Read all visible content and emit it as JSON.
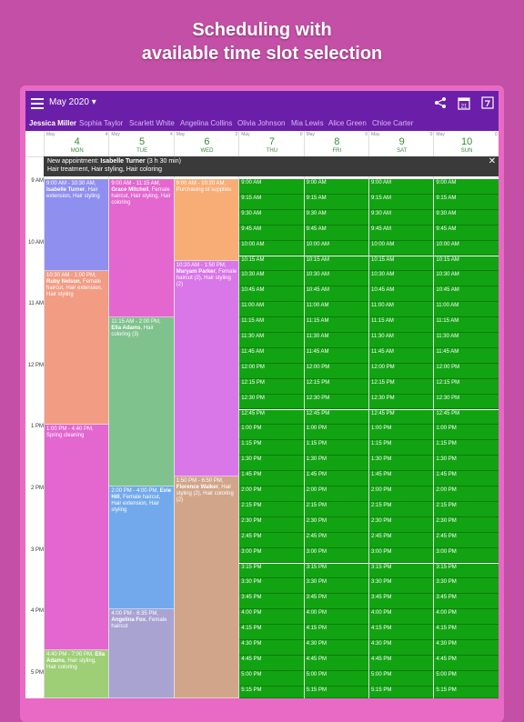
{
  "headline": {
    "line1": "Scheduling with",
    "line2": "available time slot selection"
  },
  "topbar": {
    "month": "May 2020",
    "calendar_icon_day": "21"
  },
  "staff": [
    "Jessica Miller",
    "Sophia Taylor",
    "Scarlett White",
    "Angelina Collins",
    "Olivia Johnson",
    "Mia Lewis",
    "Alice Green",
    "Chloe Carter"
  ],
  "days": [
    {
      "month": "May",
      "count": "4",
      "num": "4",
      "wd": "MON"
    },
    {
      "month": "May",
      "count": "4",
      "num": "5",
      "wd": "TUE"
    },
    {
      "month": "May",
      "count": "3",
      "num": "6",
      "wd": "WED"
    },
    {
      "month": "May",
      "count": "0",
      "num": "7",
      "wd": "THU"
    },
    {
      "month": "May",
      "count": "0",
      "num": "8",
      "wd": "FRI"
    },
    {
      "month": "May",
      "count": "0",
      "num": "9",
      "wd": "SAT"
    },
    {
      "month": "May",
      "count": "0",
      "num": "10",
      "wd": "SUN"
    }
  ],
  "banner": {
    "prefix": "New appointment: ",
    "name": "Isabelle Turner",
    "duration": " (3 h 30 min)",
    "services": "Hair treatment, Hair styling, Hair coloring",
    "close": "✕"
  },
  "hours": [
    "9 AM",
    "10 AM",
    "11 AM",
    "12 PM",
    "1 PM",
    "2 PM",
    "3 PM",
    "4 PM",
    "5 PM"
  ],
  "appointments": [
    {
      "day": 0,
      "start": 0,
      "end": 1.5,
      "color": "#8f8ff0",
      "time": "9:00 AM - 10:30 AM,",
      "name": "Isabelle Turner",
      "svc": ", Hair extension, Hair styling"
    },
    {
      "day": 0,
      "start": 1.5,
      "end": 4,
      "color": "#f29c84",
      "time": "10:30 AM - 1:00 PM,",
      "name": "Ruby Nelson",
      "svc": ", Female haircut, Hair extension, Hair styling"
    },
    {
      "day": 0,
      "start": 4,
      "end": 7.667,
      "color": "#e367cf",
      "time": "1:00 PM - 4:40 PM,",
      "name": "",
      "svc": "Spring cleaning"
    },
    {
      "day": 0,
      "start": 7.667,
      "end": 10,
      "color": "#9ecf76",
      "time": "4:40 PM - 7:00 PM,",
      "name": "Ella Adams",
      "svc": ", Hair styling, Hair coloring"
    },
    {
      "day": 1,
      "start": 0,
      "end": 2.25,
      "color": "#e367cf",
      "time": "9:00 AM - 11:15 AM,",
      "name": "Grace Mitchell",
      "svc": ", Female haircut, Hair styling, Hair coloring"
    },
    {
      "day": 1,
      "start": 2.25,
      "end": 5,
      "color": "#7fc28d",
      "time": "11:15 AM - 2:00 PM,",
      "name": "Ella Adams",
      "svc": ", Hair coloring (3)"
    },
    {
      "day": 1,
      "start": 5,
      "end": 7,
      "color": "#72a9ec",
      "time": "2:00 PM - 4:00 PM,",
      "name": "Evie Hill",
      "svc": ", Female haircut, Hair extension, Hair styling"
    },
    {
      "day": 1,
      "start": 7,
      "end": 9.583,
      "color": "#a8a3d1",
      "time": "4:00 PM - 6:35 PM,",
      "name": "Angelina Fox",
      "svc": ", Female haircut"
    },
    {
      "day": 2,
      "start": 0,
      "end": 1.333,
      "color": "#f8ad77",
      "time": "9:00 AM - 10:20 AM,",
      "name": "",
      "svc": "Purchasing of supplies"
    },
    {
      "day": 2,
      "start": 1.333,
      "end": 4.833,
      "color": "#d976e8",
      "time": "10:20 AM - 1:50 PM,",
      "name": "Maryam Parker",
      "svc": ", Female haircut (2), Hair styling (2)"
    },
    {
      "day": 2,
      "start": 4.833,
      "end": 9.833,
      "color": "#d1a58a",
      "time": "1:50 PM - 6:50 PM,",
      "name": "Florence Walker",
      "svc": ", Hair styling (2), Hair coloring (2)"
    }
  ],
  "slots": [
    "9:00 AM",
    "9:15 AM",
    "9:30 AM",
    "9:45 AM",
    "10:00 AM",
    "10:15 AM",
    "10:30 AM",
    "10:45 AM",
    "11:00 AM",
    "11:15 AM",
    "11:30 AM",
    "11:45 AM",
    "12:00 PM",
    "12:15 PM",
    "12:30 PM",
    "12:45 PM",
    "1:00 PM",
    "1:15 PM",
    "1:30 PM",
    "1:45 PM",
    "2:00 PM",
    "2:15 PM",
    "2:30 PM",
    "2:45 PM",
    "3:00 PM",
    "3:15 PM",
    "3:30 PM",
    "3:45 PM",
    "4:00 PM",
    "4:15 PM",
    "4:30 PM",
    "4:45 PM",
    "5:00 PM",
    "5:15 PM"
  ],
  "slot_color": "#12a312"
}
